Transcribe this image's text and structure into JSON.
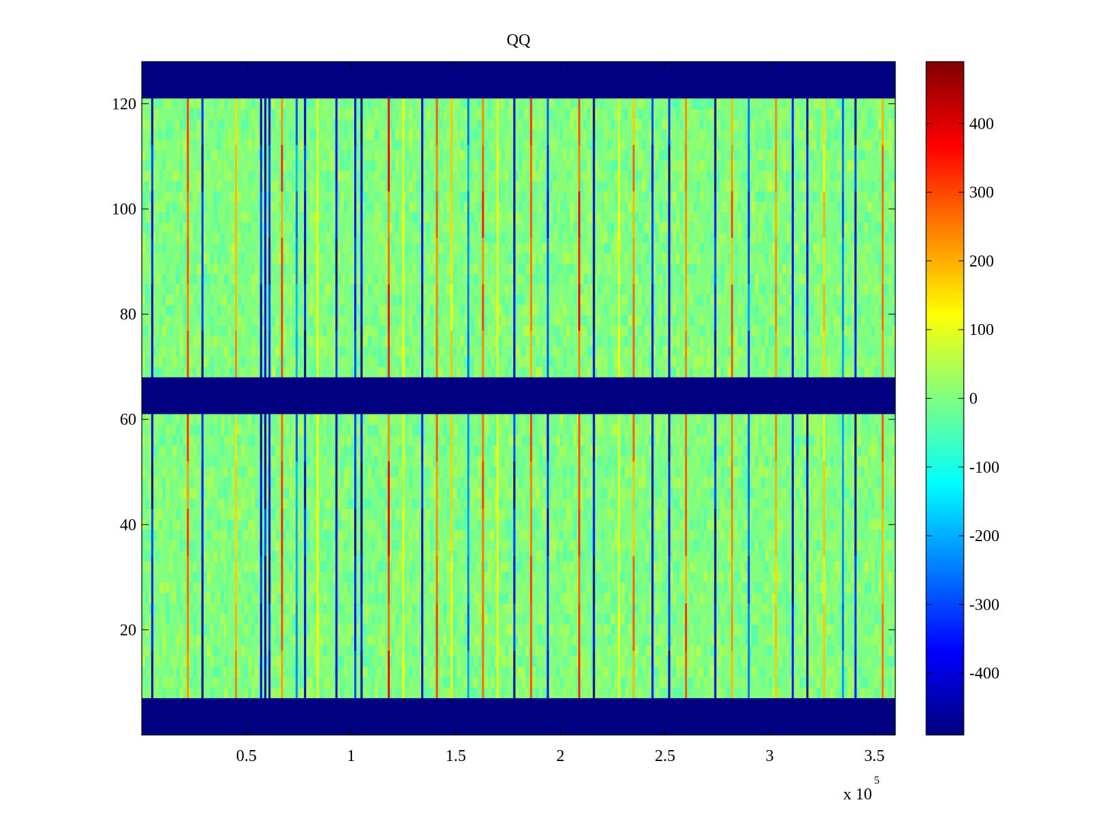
{
  "chart_data": {
    "type": "heatmap",
    "title": "QQ",
    "xlabel": "",
    "ylabel": "",
    "x_exponent_label": "x 10",
    "x_exponent_power": "5",
    "xlim": [
      0,
      360000
    ],
    "ylim": [
      0,
      128
    ],
    "x_ticks": [
      {
        "value": 50000,
        "label": "0.5"
      },
      {
        "value": 100000,
        "label": "1"
      },
      {
        "value": 150000,
        "label": "1.5"
      },
      {
        "value": 200000,
        "label": "2"
      },
      {
        "value": 250000,
        "label": "2.5"
      },
      {
        "value": 300000,
        "label": "3"
      },
      {
        "value": 350000,
        "label": "3.5"
      }
    ],
    "y_ticks": [
      {
        "value": 20,
        "label": "20"
      },
      {
        "value": 40,
        "label": "40"
      },
      {
        "value": 60,
        "label": "60"
      },
      {
        "value": 80,
        "label": "80"
      },
      {
        "value": 100,
        "label": "100"
      },
      {
        "value": 120,
        "label": "120"
      }
    ],
    "colorbar": {
      "colormap": "jet",
      "clim": [
        -490,
        490
      ],
      "ticks": [
        {
          "value": 400,
          "label": "400"
        },
        {
          "value": 300,
          "label": "300"
        },
        {
          "value": 200,
          "label": "200"
        },
        {
          "value": 100,
          "label": "100"
        },
        {
          "value": 0,
          "label": "0"
        },
        {
          "value": -100,
          "label": "-100"
        },
        {
          "value": -200,
          "label": "-200"
        },
        {
          "value": -300,
          "label": "-300"
        },
        {
          "value": -400,
          "label": "-400"
        }
      ]
    },
    "background_level": 0,
    "masked_rows": [
      {
        "y_from": 0,
        "y_to": 7,
        "value": -490
      },
      {
        "y_from": 61,
        "y_to": 68,
        "value": -490
      },
      {
        "y_from": 121,
        "y_to": 128,
        "value": -490
      }
    ],
    "data_rows": [
      {
        "y_from": 7,
        "y_to": 61
      },
      {
        "y_from": 68,
        "y_to": 121
      }
    ],
    "vertical_streaks": [
      {
        "x": 5000,
        "value": -490
      },
      {
        "x": 22000,
        "value": 320
      },
      {
        "x": 29000,
        "value": -490
      },
      {
        "x": 45000,
        "value": 250
      },
      {
        "x": 57000,
        "value": -490
      },
      {
        "x": 59000,
        "value": -490
      },
      {
        "x": 61000,
        "value": -490
      },
      {
        "x": 67000,
        "value": 330
      },
      {
        "x": 74000,
        "value": -300
      },
      {
        "x": 78000,
        "value": -490
      },
      {
        "x": 84000,
        "value": 150
      },
      {
        "x": 93000,
        "value": -490
      },
      {
        "x": 102000,
        "value": -490
      },
      {
        "x": 105000,
        "value": -490
      },
      {
        "x": 118000,
        "value": 380
      },
      {
        "x": 125000,
        "value": 120
      },
      {
        "x": 134000,
        "value": -490
      },
      {
        "x": 141000,
        "value": 330
      },
      {
        "x": 148000,
        "value": 180
      },
      {
        "x": 156000,
        "value": -300
      },
      {
        "x": 163000,
        "value": 350
      },
      {
        "x": 170000,
        "value": 120
      },
      {
        "x": 178000,
        "value": -490
      },
      {
        "x": 186000,
        "value": 320
      },
      {
        "x": 194000,
        "value": -400
      },
      {
        "x": 209000,
        "value": 380
      },
      {
        "x": 216000,
        "value": -490
      },
      {
        "x": 228000,
        "value": 120
      },
      {
        "x": 235000,
        "value": 280
      },
      {
        "x": 244000,
        "value": -490
      },
      {
        "x": 252000,
        "value": -490
      },
      {
        "x": 260000,
        "value": 330
      },
      {
        "x": 274000,
        "value": -490
      },
      {
        "x": 282000,
        "value": 300
      },
      {
        "x": 290000,
        "value": -350
      },
      {
        "x": 303000,
        "value": 250
      },
      {
        "x": 311000,
        "value": -490
      },
      {
        "x": 318000,
        "value": -490
      },
      {
        "x": 326000,
        "value": 200
      },
      {
        "x": 335000,
        "value": -300
      },
      {
        "x": 341000,
        "value": -490
      },
      {
        "x": 354000,
        "value": 300
      }
    ]
  }
}
